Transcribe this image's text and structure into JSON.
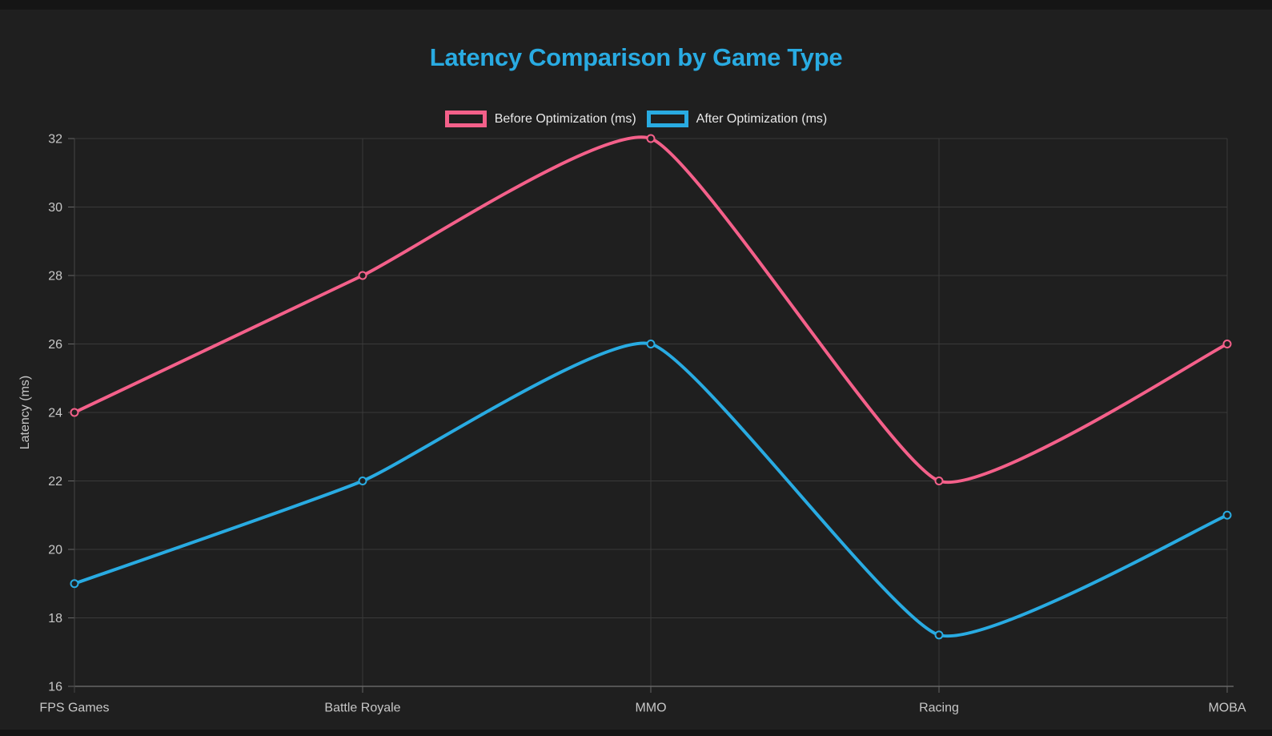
{
  "page": {
    "background": "#1f1f1f",
    "edge_strip_color": "#151515"
  },
  "chart_data": {
    "type": "line",
    "title": "Latency Comparison by Game Type",
    "title_color": "#29abe2",
    "categories": [
      "FPS Games",
      "Battle Royale",
      "MMO",
      "Racing",
      "MOBA"
    ],
    "series": [
      {
        "name": "Before Optimization (ms)",
        "color": "#f4608a",
        "values": [
          24,
          28,
          32,
          22,
          26
        ]
      },
      {
        "name": "After Optimization (ms)",
        "color": "#29abe2",
        "values": [
          19,
          22,
          26,
          17.5,
          21
        ]
      }
    ],
    "xlabel": "",
    "ylabel": "Latency (ms)",
    "ylim": [
      16,
      32
    ],
    "yticks": [
      16,
      18,
      20,
      22,
      24,
      26,
      28,
      30,
      32
    ],
    "grid": true,
    "legend_position": "top",
    "colors": {
      "grid": "#3a3a3a",
      "axis": "#666666",
      "y_axis_line": "#454545",
      "tick_label": "#c7c7c7",
      "axis_title": "#c7c7c7",
      "legend_text": "#e8e8e8"
    }
  }
}
